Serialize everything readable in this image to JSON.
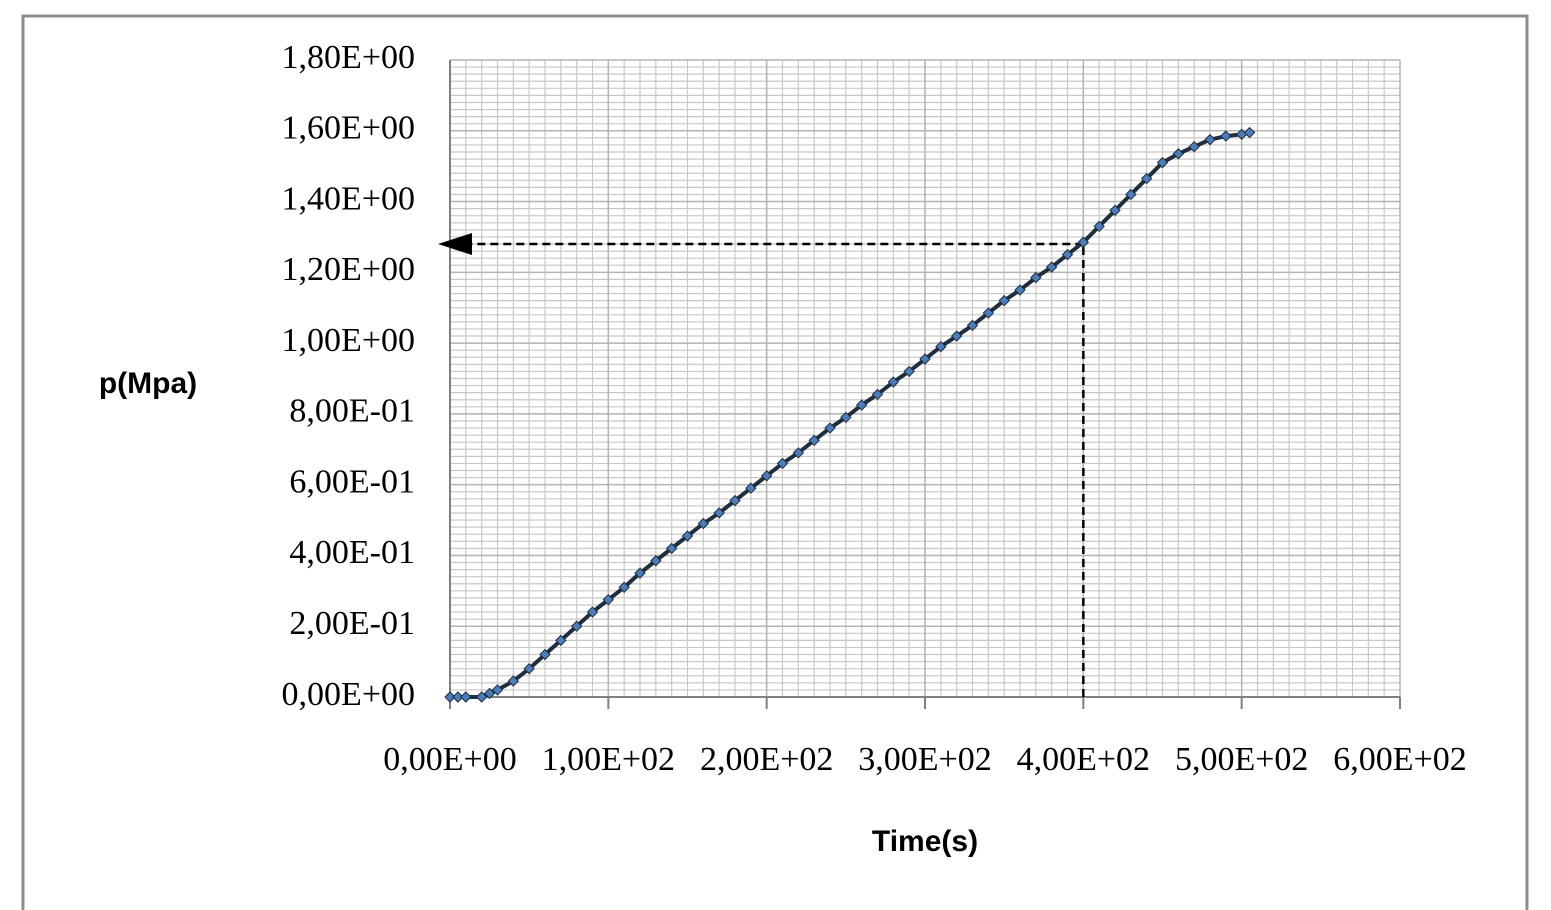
{
  "chart_data": {
    "type": "line",
    "x_label": "Time(s)",
    "y_label": "p(Mpa)",
    "x": [
      0,
      5,
      10,
      20,
      25,
      30,
      40,
      50,
      60,
      70,
      80,
      90,
      100,
      110,
      120,
      130,
      140,
      150,
      160,
      170,
      180,
      190,
      200,
      210,
      220,
      230,
      240,
      250,
      260,
      270,
      280,
      290,
      300,
      310,
      320,
      330,
      340,
      350,
      360,
      370,
      380,
      390,
      400,
      410,
      420,
      430,
      440,
      450,
      460,
      470,
      480,
      490,
      500,
      505
    ],
    "series": [
      {
        "color": "#4a7ebb",
        "values": [
          0,
          0,
          0,
          0,
          0.01,
          0.02,
          0.045,
          0.08,
          0.12,
          0.16,
          0.2,
          0.24,
          0.275,
          0.31,
          0.35,
          0.385,
          0.42,
          0.455,
          0.49,
          0.52,
          0.555,
          0.59,
          0.625,
          0.66,
          0.69,
          0.725,
          0.76,
          0.79,
          0.825,
          0.855,
          0.89,
          0.92,
          0.955,
          0.99,
          1.02,
          1.05,
          1.085,
          1.12,
          1.15,
          1.185,
          1.215,
          1.25,
          1.285,
          1.33,
          1.375,
          1.42,
          1.465,
          1.51,
          1.535,
          1.555,
          1.575,
          1.585,
          1.59,
          1.595
        ]
      }
    ],
    "xlim": [
      0,
      600
    ],
    "xticks": [
      {
        "value": 0,
        "label": "0,00E+00"
      },
      {
        "value": 100,
        "label": "1,00E+02"
      },
      {
        "value": 200,
        "label": "2,00E+02"
      },
      {
        "value": 300,
        "label": "3,00E+02"
      },
      {
        "value": 400,
        "label": "4,00E+02"
      },
      {
        "value": 500,
        "label": "5,00E+02"
      },
      {
        "value": 600,
        "label": "6,00E+02"
      }
    ],
    "ylim": [
      0,
      1.8
    ],
    "yticks": [
      {
        "value": 0,
        "label": "0,00E+00"
      },
      {
        "value": 0.2,
        "label": "2,00E-01"
      },
      {
        "value": 0.4,
        "label": "4,00E-01"
      },
      {
        "value": 0.6,
        "label": "6,00E-01"
      },
      {
        "value": 0.8,
        "label": "8,00E-01"
      },
      {
        "value": 1.0,
        "label": "1,00E+00"
      },
      {
        "value": 1.2,
        "label": "1,20E+00"
      },
      {
        "value": 1.4,
        "label": "1,40E+00"
      },
      {
        "value": 1.6,
        "label": "1,60E+00"
      },
      {
        "value": 1.8,
        "label": "1,80E+00"
      }
    ],
    "grid": true,
    "minor_grid_step": {
      "x": 10,
      "y": 0.02
    },
    "annotation": {
      "x": 400,
      "y": 1.28
    }
  }
}
